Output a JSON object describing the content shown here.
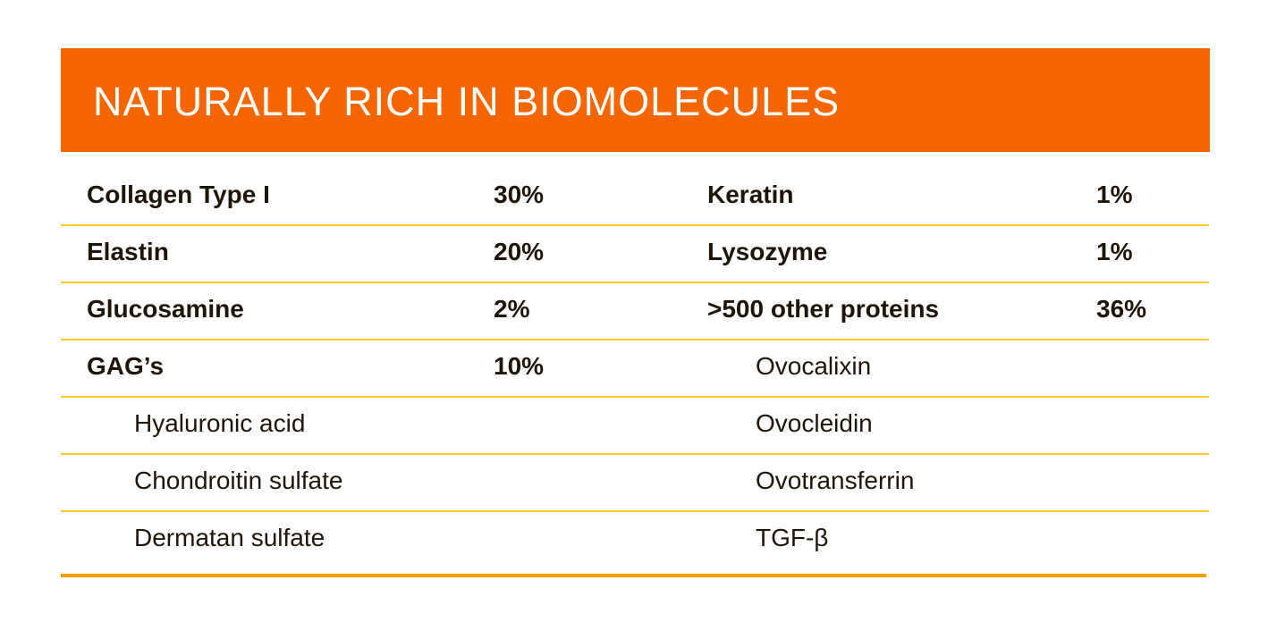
{
  "title": "NATURALLY RICH IN BIOMOLECULES",
  "colors": {
    "header": "#f56600",
    "row_line": "#f2cb2a",
    "bottom_line": "#f29e00"
  },
  "rows": [
    {
      "left": {
        "name": "Collagen Type I",
        "value": "30%",
        "bold": true
      },
      "right": {
        "name": "Keratin",
        "value": "1%",
        "bold": true
      }
    },
    {
      "left": {
        "name": "Elastin",
        "value": "20%",
        "bold": true
      },
      "right": {
        "name": "Lysozyme",
        "value": "1%",
        "bold": true
      }
    },
    {
      "left": {
        "name": "Glucosamine",
        "value": "2%",
        "bold": true
      },
      "right": {
        "name": ">500 other proteins",
        "value": "36%",
        "bold": true
      }
    },
    {
      "left": {
        "name": "GAG’s",
        "value": "10%",
        "bold": true
      },
      "right": {
        "name": "Ovocalixin",
        "value": "",
        "bold": false
      }
    },
    {
      "left": {
        "name": "Hyaluronic acid",
        "value": "",
        "bold": false
      },
      "right": {
        "name": "Ovocleidin",
        "value": "",
        "bold": false
      }
    },
    {
      "left": {
        "name": "Chondroitin sulfate",
        "value": "",
        "bold": false
      },
      "right": {
        "name": "Ovotransferrin",
        "value": "",
        "bold": false
      }
    },
    {
      "left": {
        "name": "Dermatan sulfate",
        "value": "",
        "bold": false
      },
      "right": {
        "name": "TGF-β",
        "value": "",
        "bold": false
      }
    }
  ]
}
